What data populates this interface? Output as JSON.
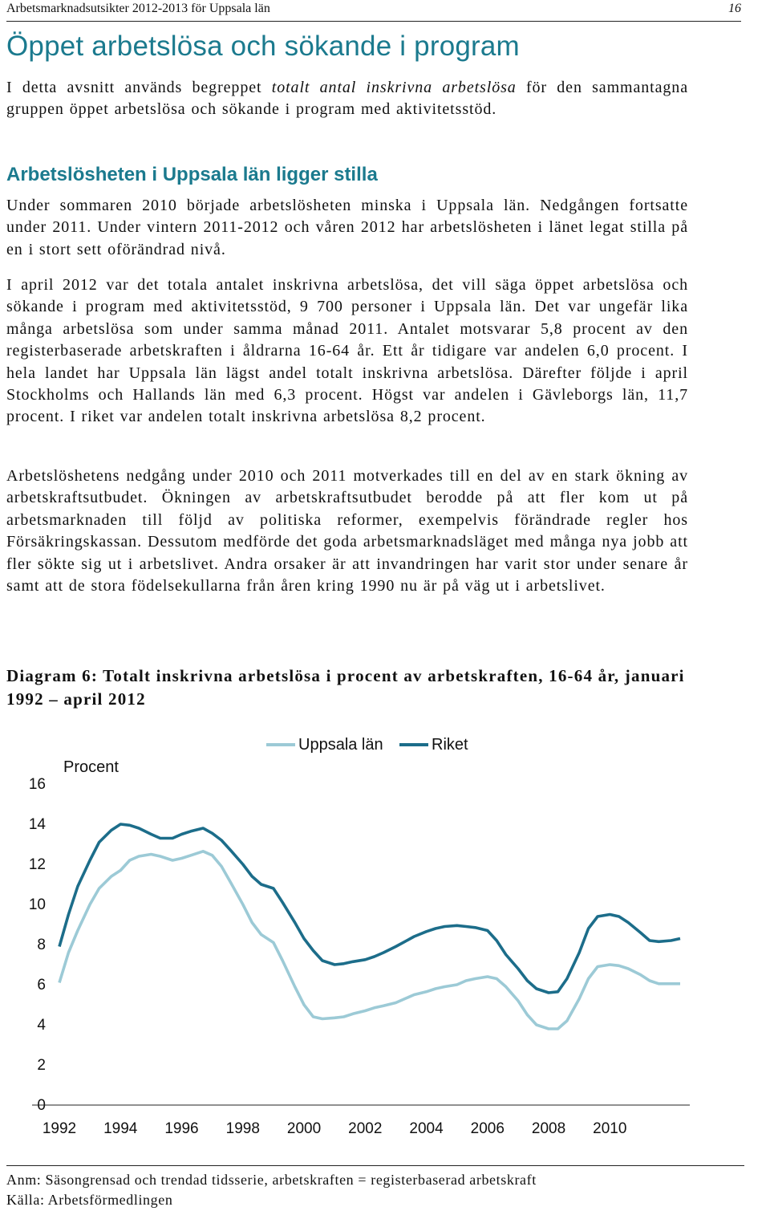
{
  "header": {
    "left": "Arbetsmarknadsutsikter 2012-2013 för Uppsala län",
    "page_number": "16"
  },
  "title": "Öppet arbetslösa och sökande i program",
  "intro": {
    "pre": "I detta avsnitt används begreppet ",
    "em": "totalt antal inskrivna arbetslösa",
    "post": " för den sammantagna gruppen öppet arbetslösa och sökande i program med aktivitetsstöd."
  },
  "section_heading": "Arbetslösheten i Uppsala län ligger stilla",
  "paragraphs": [
    "Under sommaren 2010 började arbetslösheten minska i Uppsala län. Nedgången fortsatte under 2011. Under vintern 2011-2012 och våren 2012 har arbetslösheten i länet legat stilla på en i stort sett oförändrad nivå.",
    "I april 2012 var det totala antalet inskrivna arbetslösa, det vill säga öppet arbetslösa och sökande i program med aktivitetsstöd, 9 700 personer i Uppsala län. Det var ungefär lika många arbetslösa som under samma månad 2011. Antalet motsvarar 5,8 procent av den registerbaserade arbetskraften i åldrarna 16-64 år. Ett år tidigare var andelen 6,0 procent. I hela landet har Uppsala län lägst andel totalt inskrivna arbetslösa. Därefter följde i april Stockholms och Hallands län med 6,3 procent. Högst var andelen i Gävleborgs län, 11,7 procent. I riket var andelen totalt inskrivna arbetslösa 8,2 procent.",
    "Arbetslöshetens nedgång under 2010 och 2011 motverkades till en del av en stark ökning av arbetskraftsutbudet. Ökningen av arbetskraftsutbudet berodde på att fler kom ut på arbetsmarknaden till följd av politiska reformer, exempelvis förändrade regler hos Försäkringskassan. Dessutom medförde det goda arbetsmarknadsläget med många nya jobb att fler sökte sig ut i arbetslivet. Andra orsaker är att invandringen har varit stor under senare år samt att de stora födelsekullarna från åren kring 1990 nu är på väg ut i arbetslivet."
  ],
  "diagram_title": "Diagram 6: Totalt inskrivna arbetslösa i procent av arbetskraften, 16-64 år, januari 1992 – april 2012",
  "chart_data": {
    "type": "line",
    "ylabel": "Procent",
    "ylim": [
      0,
      16
    ],
    "yticks": [
      "0",
      "2",
      "4",
      "6",
      "8",
      "10",
      "12",
      "14",
      "16"
    ],
    "xlim": [
      1992,
      2012.3
    ],
    "xticks": [
      "1992",
      "1994",
      "1996",
      "1998",
      "2000",
      "2002",
      "2004",
      "2006",
      "2008",
      "2010"
    ],
    "legend_position": "top",
    "series": [
      {
        "name": "Uppsala län",
        "color": "#9ccad6",
        "points": [
          [
            1992.0,
            6.1
          ],
          [
            1992.3,
            7.6
          ],
          [
            1992.6,
            8.7
          ],
          [
            1993.0,
            10.0
          ],
          [
            1993.3,
            10.8
          ],
          [
            1993.7,
            11.4
          ],
          [
            1994.0,
            11.7
          ],
          [
            1994.3,
            12.2
          ],
          [
            1994.6,
            12.4
          ],
          [
            1995.0,
            12.5
          ],
          [
            1995.3,
            12.4
          ],
          [
            1995.7,
            12.2
          ],
          [
            1996.0,
            12.3
          ],
          [
            1996.3,
            12.45
          ],
          [
            1996.7,
            12.65
          ],
          [
            1997.0,
            12.45
          ],
          [
            1997.3,
            11.9
          ],
          [
            1997.6,
            11.1
          ],
          [
            1998.0,
            10.0
          ],
          [
            1998.3,
            9.1
          ],
          [
            1998.6,
            8.5
          ],
          [
            1999.0,
            8.1
          ],
          [
            1999.3,
            7.2
          ],
          [
            1999.7,
            5.9
          ],
          [
            2000.0,
            5.0
          ],
          [
            2000.3,
            4.4
          ],
          [
            2000.6,
            4.3
          ],
          [
            2001.0,
            4.35
          ],
          [
            2001.3,
            4.4
          ],
          [
            2001.6,
            4.55
          ],
          [
            2002.0,
            4.7
          ],
          [
            2002.3,
            4.85
          ],
          [
            2002.6,
            4.95
          ],
          [
            2003.0,
            5.1
          ],
          [
            2003.3,
            5.3
          ],
          [
            2003.6,
            5.5
          ],
          [
            2004.0,
            5.65
          ],
          [
            2004.3,
            5.8
          ],
          [
            2004.6,
            5.9
          ],
          [
            2005.0,
            6.0
          ],
          [
            2005.3,
            6.2
          ],
          [
            2005.6,
            6.3
          ],
          [
            2006.0,
            6.4
          ],
          [
            2006.3,
            6.3
          ],
          [
            2006.6,
            5.9
          ],
          [
            2007.0,
            5.2
          ],
          [
            2007.3,
            4.5
          ],
          [
            2007.6,
            4.0
          ],
          [
            2008.0,
            3.8
          ],
          [
            2008.3,
            3.8
          ],
          [
            2008.6,
            4.2
          ],
          [
            2009.0,
            5.3
          ],
          [
            2009.3,
            6.3
          ],
          [
            2009.6,
            6.9
          ],
          [
            2010.0,
            7.0
          ],
          [
            2010.3,
            6.95
          ],
          [
            2010.6,
            6.8
          ],
          [
            2011.0,
            6.5
          ],
          [
            2011.3,
            6.2
          ],
          [
            2011.6,
            6.05
          ],
          [
            2012.0,
            6.05
          ],
          [
            2012.3,
            6.05
          ]
        ]
      },
      {
        "name": "Riket",
        "color": "#1c6d8a",
        "points": [
          [
            1992.0,
            7.9
          ],
          [
            1992.3,
            9.5
          ],
          [
            1992.6,
            10.9
          ],
          [
            1993.0,
            12.2
          ],
          [
            1993.3,
            13.1
          ],
          [
            1993.7,
            13.7
          ],
          [
            1994.0,
            14.0
          ],
          [
            1994.3,
            13.95
          ],
          [
            1994.6,
            13.8
          ],
          [
            1995.0,
            13.5
          ],
          [
            1995.3,
            13.3
          ],
          [
            1995.7,
            13.3
          ],
          [
            1996.0,
            13.5
          ],
          [
            1996.3,
            13.65
          ],
          [
            1996.7,
            13.8
          ],
          [
            1997.0,
            13.55
          ],
          [
            1997.3,
            13.2
          ],
          [
            1997.6,
            12.7
          ],
          [
            1998.0,
            12.0
          ],
          [
            1998.3,
            11.4
          ],
          [
            1998.6,
            11.0
          ],
          [
            1999.0,
            10.8
          ],
          [
            1999.3,
            10.1
          ],
          [
            1999.7,
            9.1
          ],
          [
            2000.0,
            8.3
          ],
          [
            2000.3,
            7.7
          ],
          [
            2000.6,
            7.2
          ],
          [
            2001.0,
            7.0
          ],
          [
            2001.3,
            7.05
          ],
          [
            2001.6,
            7.15
          ],
          [
            2002.0,
            7.25
          ],
          [
            2002.3,
            7.4
          ],
          [
            2002.6,
            7.6
          ],
          [
            2003.0,
            7.9
          ],
          [
            2003.3,
            8.15
          ],
          [
            2003.6,
            8.4
          ],
          [
            2004.0,
            8.65
          ],
          [
            2004.3,
            8.8
          ],
          [
            2004.6,
            8.9
          ],
          [
            2005.0,
            8.95
          ],
          [
            2005.3,
            8.9
          ],
          [
            2005.6,
            8.85
          ],
          [
            2006.0,
            8.7
          ],
          [
            2006.3,
            8.2
          ],
          [
            2006.6,
            7.5
          ],
          [
            2007.0,
            6.8
          ],
          [
            2007.3,
            6.2
          ],
          [
            2007.6,
            5.8
          ],
          [
            2008.0,
            5.6
          ],
          [
            2008.3,
            5.65
          ],
          [
            2008.6,
            6.3
          ],
          [
            2009.0,
            7.6
          ],
          [
            2009.3,
            8.8
          ],
          [
            2009.6,
            9.4
          ],
          [
            2010.0,
            9.5
          ],
          [
            2010.3,
            9.4
          ],
          [
            2010.6,
            9.1
          ],
          [
            2011.0,
            8.6
          ],
          [
            2011.3,
            8.2
          ],
          [
            2011.6,
            8.15
          ],
          [
            2012.0,
            8.2
          ],
          [
            2012.3,
            8.3
          ]
        ]
      }
    ]
  },
  "notes": [
    "Anm: Säsongrensad och trendad tidsserie, arbetskraften = registerbaserad arbetskraft",
    "Källa: Arbetsförmedlingen"
  ]
}
